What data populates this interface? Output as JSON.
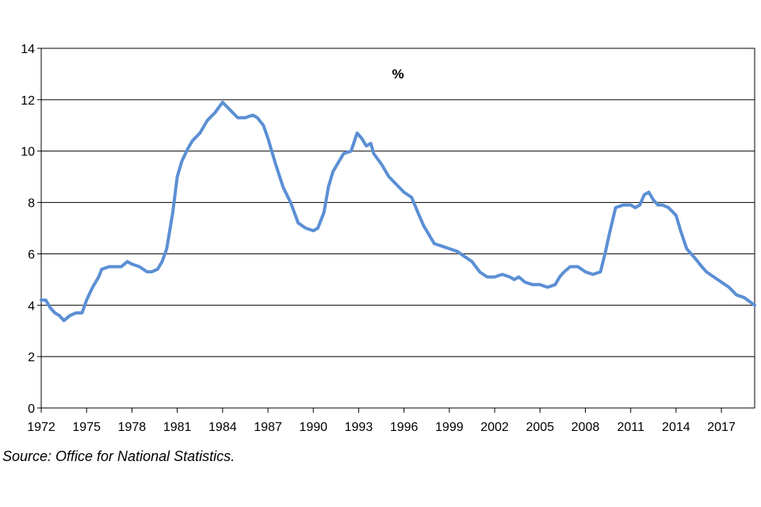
{
  "chart_data": {
    "type": "line",
    "unit_label": "%",
    "ylim": [
      0,
      14
    ],
    "y_ticks": [
      0,
      2,
      4,
      6,
      8,
      10,
      12,
      14
    ],
    "xlim": [
      1972,
      2019.2
    ],
    "x_ticks": [
      "1972",
      "1975",
      "1978",
      "1981",
      "1984",
      "1987",
      "1990",
      "1993",
      "1996",
      "1999",
      "2002",
      "2005",
      "2008",
      "2011",
      "2014",
      "2017"
    ],
    "grid": "horizontal",
    "line_color": "#5b8fd4",
    "series": [
      {
        "x": [
          1972.0,
          1972.3,
          1972.6,
          1972.9,
          1973.2,
          1973.5,
          1973.9,
          1974.3,
          1974.7,
          1975.0,
          1975.4,
          1975.8,
          1976.0,
          1976.5,
          1977.0,
          1977.3,
          1977.7,
          1978.0,
          1978.5,
          1979.0,
          1979.3,
          1979.7,
          1980.0,
          1980.3,
          1980.7,
          1981.0,
          1981.3,
          1981.7,
          1982.0,
          1982.5,
          1983.0,
          1983.5,
          1984.0,
          1984.5,
          1985.0,
          1985.5,
          1986.0,
          1986.3,
          1986.7,
          1987.0,
          1987.5,
          1988.0,
          1988.5,
          1989.0,
          1989.5,
          1990.0,
          1990.3,
          1990.7,
          1991.0,
          1991.3,
          1991.7,
          1992.0,
          1992.5,
          1992.9,
          1993.2,
          1993.5,
          1993.8,
          1994.0,
          1994.5,
          1995.0,
          1995.5,
          1996.0,
          1996.5,
          1997.0,
          1997.3,
          1997.7,
          1998.0,
          1998.5,
          1999.0,
          1999.5,
          2000.0,
          2000.5,
          2001.0,
          2001.5,
          2002.0,
          2002.5,
          2003.0,
          2003.3,
          2003.6,
          2004.0,
          2004.5,
          2005.0,
          2005.5,
          2006.0,
          2006.3,
          2006.6,
          2007.0,
          2007.5,
          2008.0,
          2008.5,
          2009.0,
          2009.3,
          2009.6,
          2010.0,
          2010.5,
          2011.0,
          2011.3,
          2011.6,
          2011.9,
          2012.2,
          2012.5,
          2012.8,
          2013.1,
          2013.5,
          2014.0,
          2014.3,
          2014.7,
          2015.0,
          2015.3,
          2015.7,
          2016.0,
          2016.5,
          2017.0,
          2017.5,
          2018.0,
          2018.5,
          2019.2
        ],
        "y": [
          4.2,
          4.2,
          3.9,
          3.7,
          3.6,
          3.4,
          3.6,
          3.7,
          3.7,
          4.2,
          4.7,
          5.1,
          5.4,
          5.5,
          5.5,
          5.5,
          5.7,
          5.6,
          5.5,
          5.3,
          5.3,
          5.4,
          5.7,
          6.2,
          7.6,
          9.0,
          9.6,
          10.1,
          10.4,
          10.7,
          11.2,
          11.5,
          11.9,
          11.6,
          11.3,
          11.3,
          11.4,
          11.3,
          11.0,
          10.5,
          9.5,
          8.6,
          8.0,
          7.2,
          7.0,
          6.9,
          7.0,
          7.6,
          8.6,
          9.2,
          9.6,
          9.9,
          10.0,
          10.7,
          10.5,
          10.2,
          10.3,
          9.9,
          9.5,
          9.0,
          8.7,
          8.4,
          8.2,
          7.5,
          7.1,
          6.7,
          6.4,
          6.3,
          6.2,
          6.1,
          5.9,
          5.7,
          5.3,
          5.1,
          5.1,
          5.2,
          5.1,
          5.0,
          5.1,
          4.9,
          4.8,
          4.8,
          4.7,
          4.8,
          5.1,
          5.3,
          5.5,
          5.5,
          5.3,
          5.2,
          5.3,
          6.0,
          6.8,
          7.8,
          7.9,
          7.9,
          7.8,
          7.9,
          8.3,
          8.4,
          8.1,
          7.9,
          7.9,
          7.8,
          7.5,
          6.9,
          6.2,
          6.0,
          5.8,
          5.5,
          5.3,
          5.1,
          4.9,
          4.7,
          4.4,
          4.3,
          4.0
        ]
      }
    ]
  },
  "source_note": "Source: Office for National Statistics."
}
